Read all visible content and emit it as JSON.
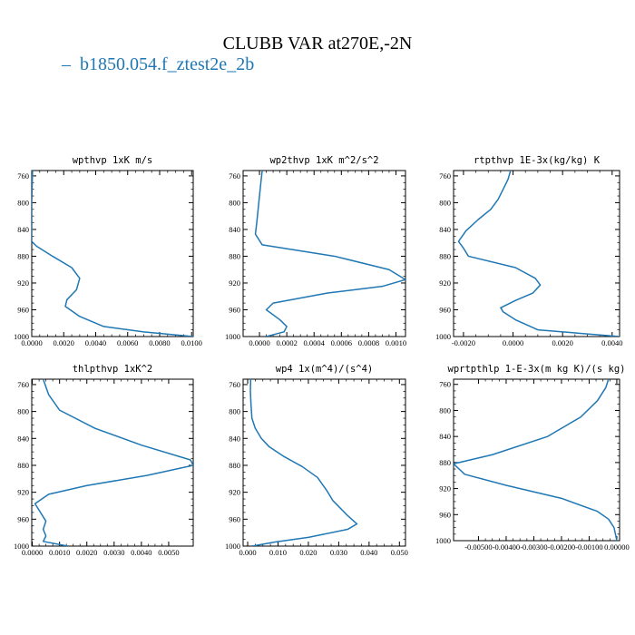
{
  "figure": {
    "title": "CLUBB VAR at270E,-2N",
    "legend_label": "b1850.054.f_ztest2e_2b",
    "legend_marker": "–",
    "line_color": "#1f77b4"
  },
  "chart_data": [
    {
      "type": "line",
      "title": "wpthvp   1xK m/s",
      "xticks": [
        "0.0000",
        "0.0020",
        "0.0040",
        "0.0060",
        "0.0080",
        "0.0100"
      ],
      "xlim": [
        0.0,
        0.0101
      ],
      "yticks": [
        "760",
        "800",
        "840",
        "880",
        "920",
        "960",
        "1000"
      ],
      "ylim": [
        1000,
        752
      ],
      "series": [
        {
          "x": [
            5e-05,
            2e-05,
            0.0,
            0.0,
            0.0,
            0.0,
            0.0003,
            0.0013,
            0.0025,
            0.003,
            0.0028,
            0.0022,
            0.0021,
            0.003,
            0.0045,
            0.007,
            0.0101
          ],
          "y": [
            752,
            780,
            800,
            820,
            840,
            858,
            865,
            880,
            897,
            913,
            930,
            945,
            955,
            970,
            985,
            993,
            1000
          ]
        }
      ]
    },
    {
      "type": "line",
      "title": "wp2thvp   1xK m^2/s^2",
      "xticks": [
        "0.0000",
        "0.0002",
        "0.0004",
        "0.0006",
        "0.0008",
        "0.0010"
      ],
      "xlim": [
        -0.00012,
        0.00107
      ],
      "yticks": [
        "760",
        "800",
        "840",
        "880",
        "920",
        "960",
        "1000"
      ],
      "ylim": [
        1000,
        752
      ],
      "series": [
        {
          "x": [
            2e-05,
            1e-05,
            0.0,
            -1e-05,
            -2e-05,
            -3e-05,
            2e-05,
            0.00055,
            0.00095,
            0.00107,
            0.0009,
            0.0005,
            0.0001,
            5e-05,
            0.00015,
            0.0002,
            0.00018,
            5e-05
          ],
          "y": [
            752,
            770,
            790,
            810,
            830,
            847,
            863,
            880,
            900,
            915,
            925,
            935,
            950,
            960,
            975,
            985,
            993,
            1000
          ]
        }
      ]
    },
    {
      "type": "line",
      "title": "rtpthvp   1E-3x(kg/kg) K",
      "xticks": [
        "-0.0020",
        "0.0000",
        "0.0020",
        "0.0040"
      ],
      "xlim": [
        -0.0024,
        0.0043
      ],
      "yticks": [
        "760",
        "800",
        "840",
        "880",
        "920",
        "960",
        "1000"
      ],
      "ylim": [
        1000,
        752
      ],
      "series": [
        {
          "x": [
            -0.0001,
            -0.0002,
            -0.0004,
            -0.0006,
            -0.0009,
            -0.0014,
            -0.0019,
            -0.0022,
            -0.002,
            -0.0018,
            0.0001,
            0.0009,
            0.0011,
            0.0008,
            0.0001,
            -0.0005,
            -0.0004,
            0.0001,
            0.001,
            0.0043
          ],
          "y": [
            752,
            765,
            780,
            795,
            810,
            825,
            842,
            858,
            868,
            880,
            897,
            913,
            923,
            935,
            946,
            957,
            963,
            975,
            990,
            1000
          ]
        }
      ]
    },
    {
      "type": "line",
      "title": "thlpthvp   1xK^2",
      "xticks": [
        "0.0000",
        "0.0010",
        "0.0020",
        "0.0030",
        "0.0040",
        "0.0050"
      ],
      "xlim": [
        -2e-05,
        0.0059
      ],
      "yticks": [
        "760",
        "800",
        "840",
        "880",
        "920",
        "960",
        "1000"
      ],
      "ylim": [
        1000,
        752
      ],
      "series": [
        {
          "x": [
            0.0004,
            0.0006,
            0.001,
            0.0023,
            0.004,
            0.0058,
            0.0059,
            0.0042,
            0.002,
            0.0006,
            0.0001,
            0.0003,
            0.0005,
            0.0004,
            0.0005,
            0.0004,
            0.0013
          ],
          "y": [
            752,
            775,
            798,
            825,
            850,
            872,
            880,
            895,
            910,
            923,
            937,
            950,
            963,
            975,
            985,
            993,
            1000
          ]
        }
      ]
    },
    {
      "type": "line",
      "title": "wp4   1x(m^4)/(s^4)",
      "xticks": [
        "0.000",
        "0.010",
        "0.020",
        "0.030",
        "0.040",
        "0.050"
      ],
      "xlim": [
        -0.0015,
        0.052
      ],
      "yticks": [
        "760",
        "800",
        "840",
        "880",
        "920",
        "960",
        "1000"
      ],
      "ylim": [
        1000,
        752
      ],
      "series": [
        {
          "x": [
            0.001,
            0.0009,
            0.0011,
            0.0014,
            0.0025,
            0.0045,
            0.007,
            0.012,
            0.018,
            0.023,
            0.026,
            0.028,
            0.033,
            0.036,
            0.033,
            0.02,
            0.009,
            0.0015
          ],
          "y": [
            752,
            770,
            790,
            810,
            825,
            840,
            852,
            867,
            882,
            898,
            917,
            932,
            955,
            967,
            975,
            987,
            994,
            1000
          ]
        }
      ]
    },
    {
      "type": "line",
      "title": "wprtpthlp   1-E-3x(m kg K)/(s kg)",
      "xticks": [
        "-0.00500",
        "-0.00400",
        "-0.00300",
        "-0.00200",
        "-0.00100",
        "0.00000"
      ],
      "xlim": [
        -0.0059,
        0.0001
      ],
      "yticks": [
        "760",
        "800",
        "840",
        "880",
        "920",
        "960",
        "1000"
      ],
      "ylim": [
        1000,
        752
      ],
      "series": [
        {
          "x": [
            -0.0003,
            -0.0004,
            -0.0007,
            -0.0013,
            -0.0025,
            -0.0045,
            -0.0059,
            -0.0055,
            -0.004,
            -0.002,
            -0.0007,
            -0.0003,
            -0.0001,
            0.0
          ],
          "y": [
            752,
            765,
            785,
            810,
            840,
            868,
            882,
            898,
            915,
            935,
            955,
            967,
            980,
            1000
          ]
        }
      ]
    }
  ]
}
